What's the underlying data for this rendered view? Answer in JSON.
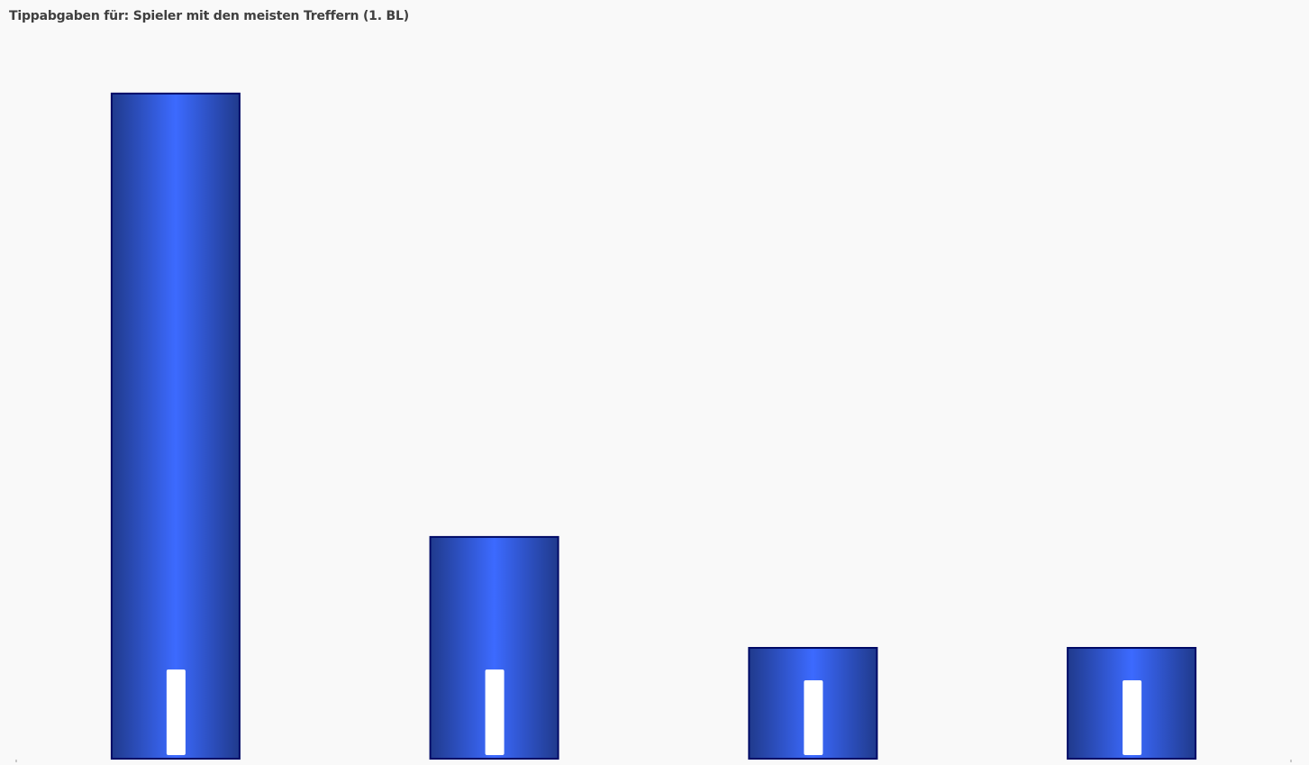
{
  "chart_data": {
    "type": "bar",
    "title": "Tippabgaben für: Spieler mit den meisten Treffern (1. BL)",
    "xlabel": "",
    "ylabel": "",
    "categories": [
      "",
      "",
      "",
      ""
    ],
    "values": [
      6,
      2,
      1,
      1
    ],
    "ylim": [
      0,
      6.6
    ],
    "grid": false,
    "legend": "none",
    "data_labels": [
      "",
      "",
      "",
      ""
    ],
    "colors": {
      "bar_center": "#3c6aff",
      "bar_edge": "#203a8c",
      "bar_outline": "#000a66",
      "label_box": "#ffffff",
      "background": "#f9f9f9"
    }
  }
}
